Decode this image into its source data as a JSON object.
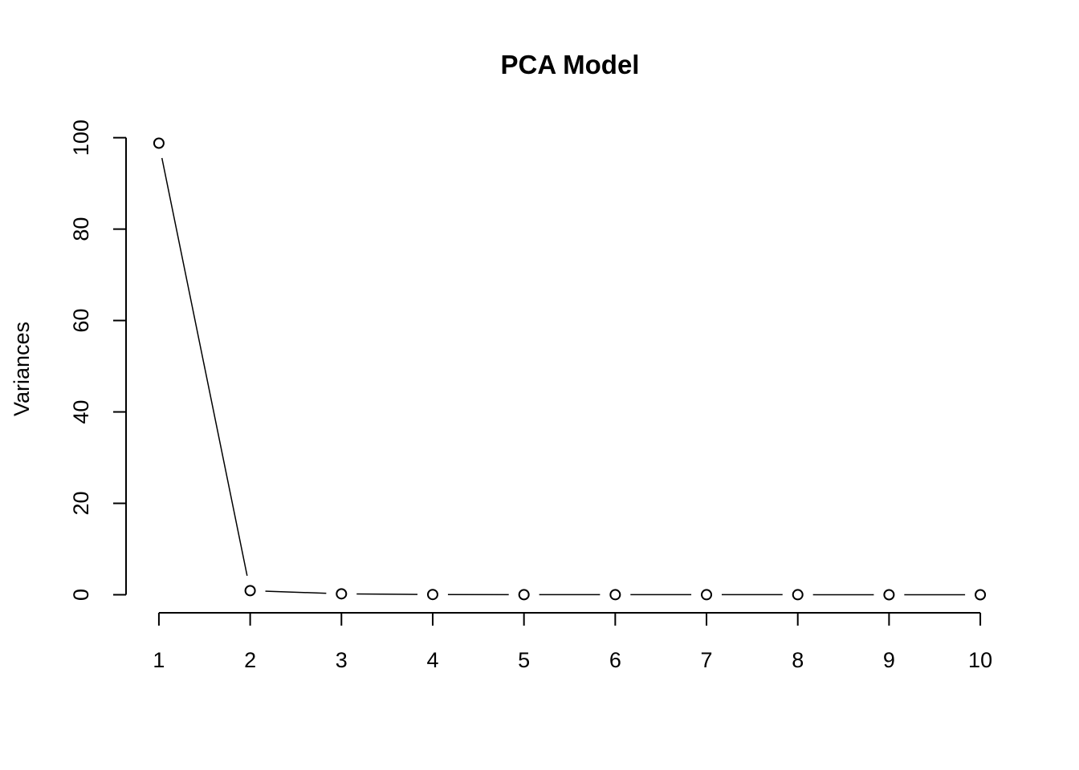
{
  "chart_data": {
    "type": "line",
    "title": "PCA Model",
    "y_label": "Variances",
    "x": [
      1,
      2,
      3,
      4,
      5,
      6,
      7,
      8,
      9,
      10
    ],
    "series": [
      {
        "color": "#000000",
        "values": [
          98.8,
          0.9,
          0.2,
          0.05,
          0.02,
          0.01,
          0.01,
          0.01,
          0,
          0
        ]
      }
    ],
    "xlim": [
      0.64,
      10.36
    ],
    "xticks": [
      1,
      2,
      3,
      4,
      5,
      6,
      7,
      8,
      9,
      10
    ],
    "ylim": [
      -3.95,
      102.75
    ],
    "yticks": [
      0,
      20,
      40,
      60,
      80,
      100
    ]
  }
}
